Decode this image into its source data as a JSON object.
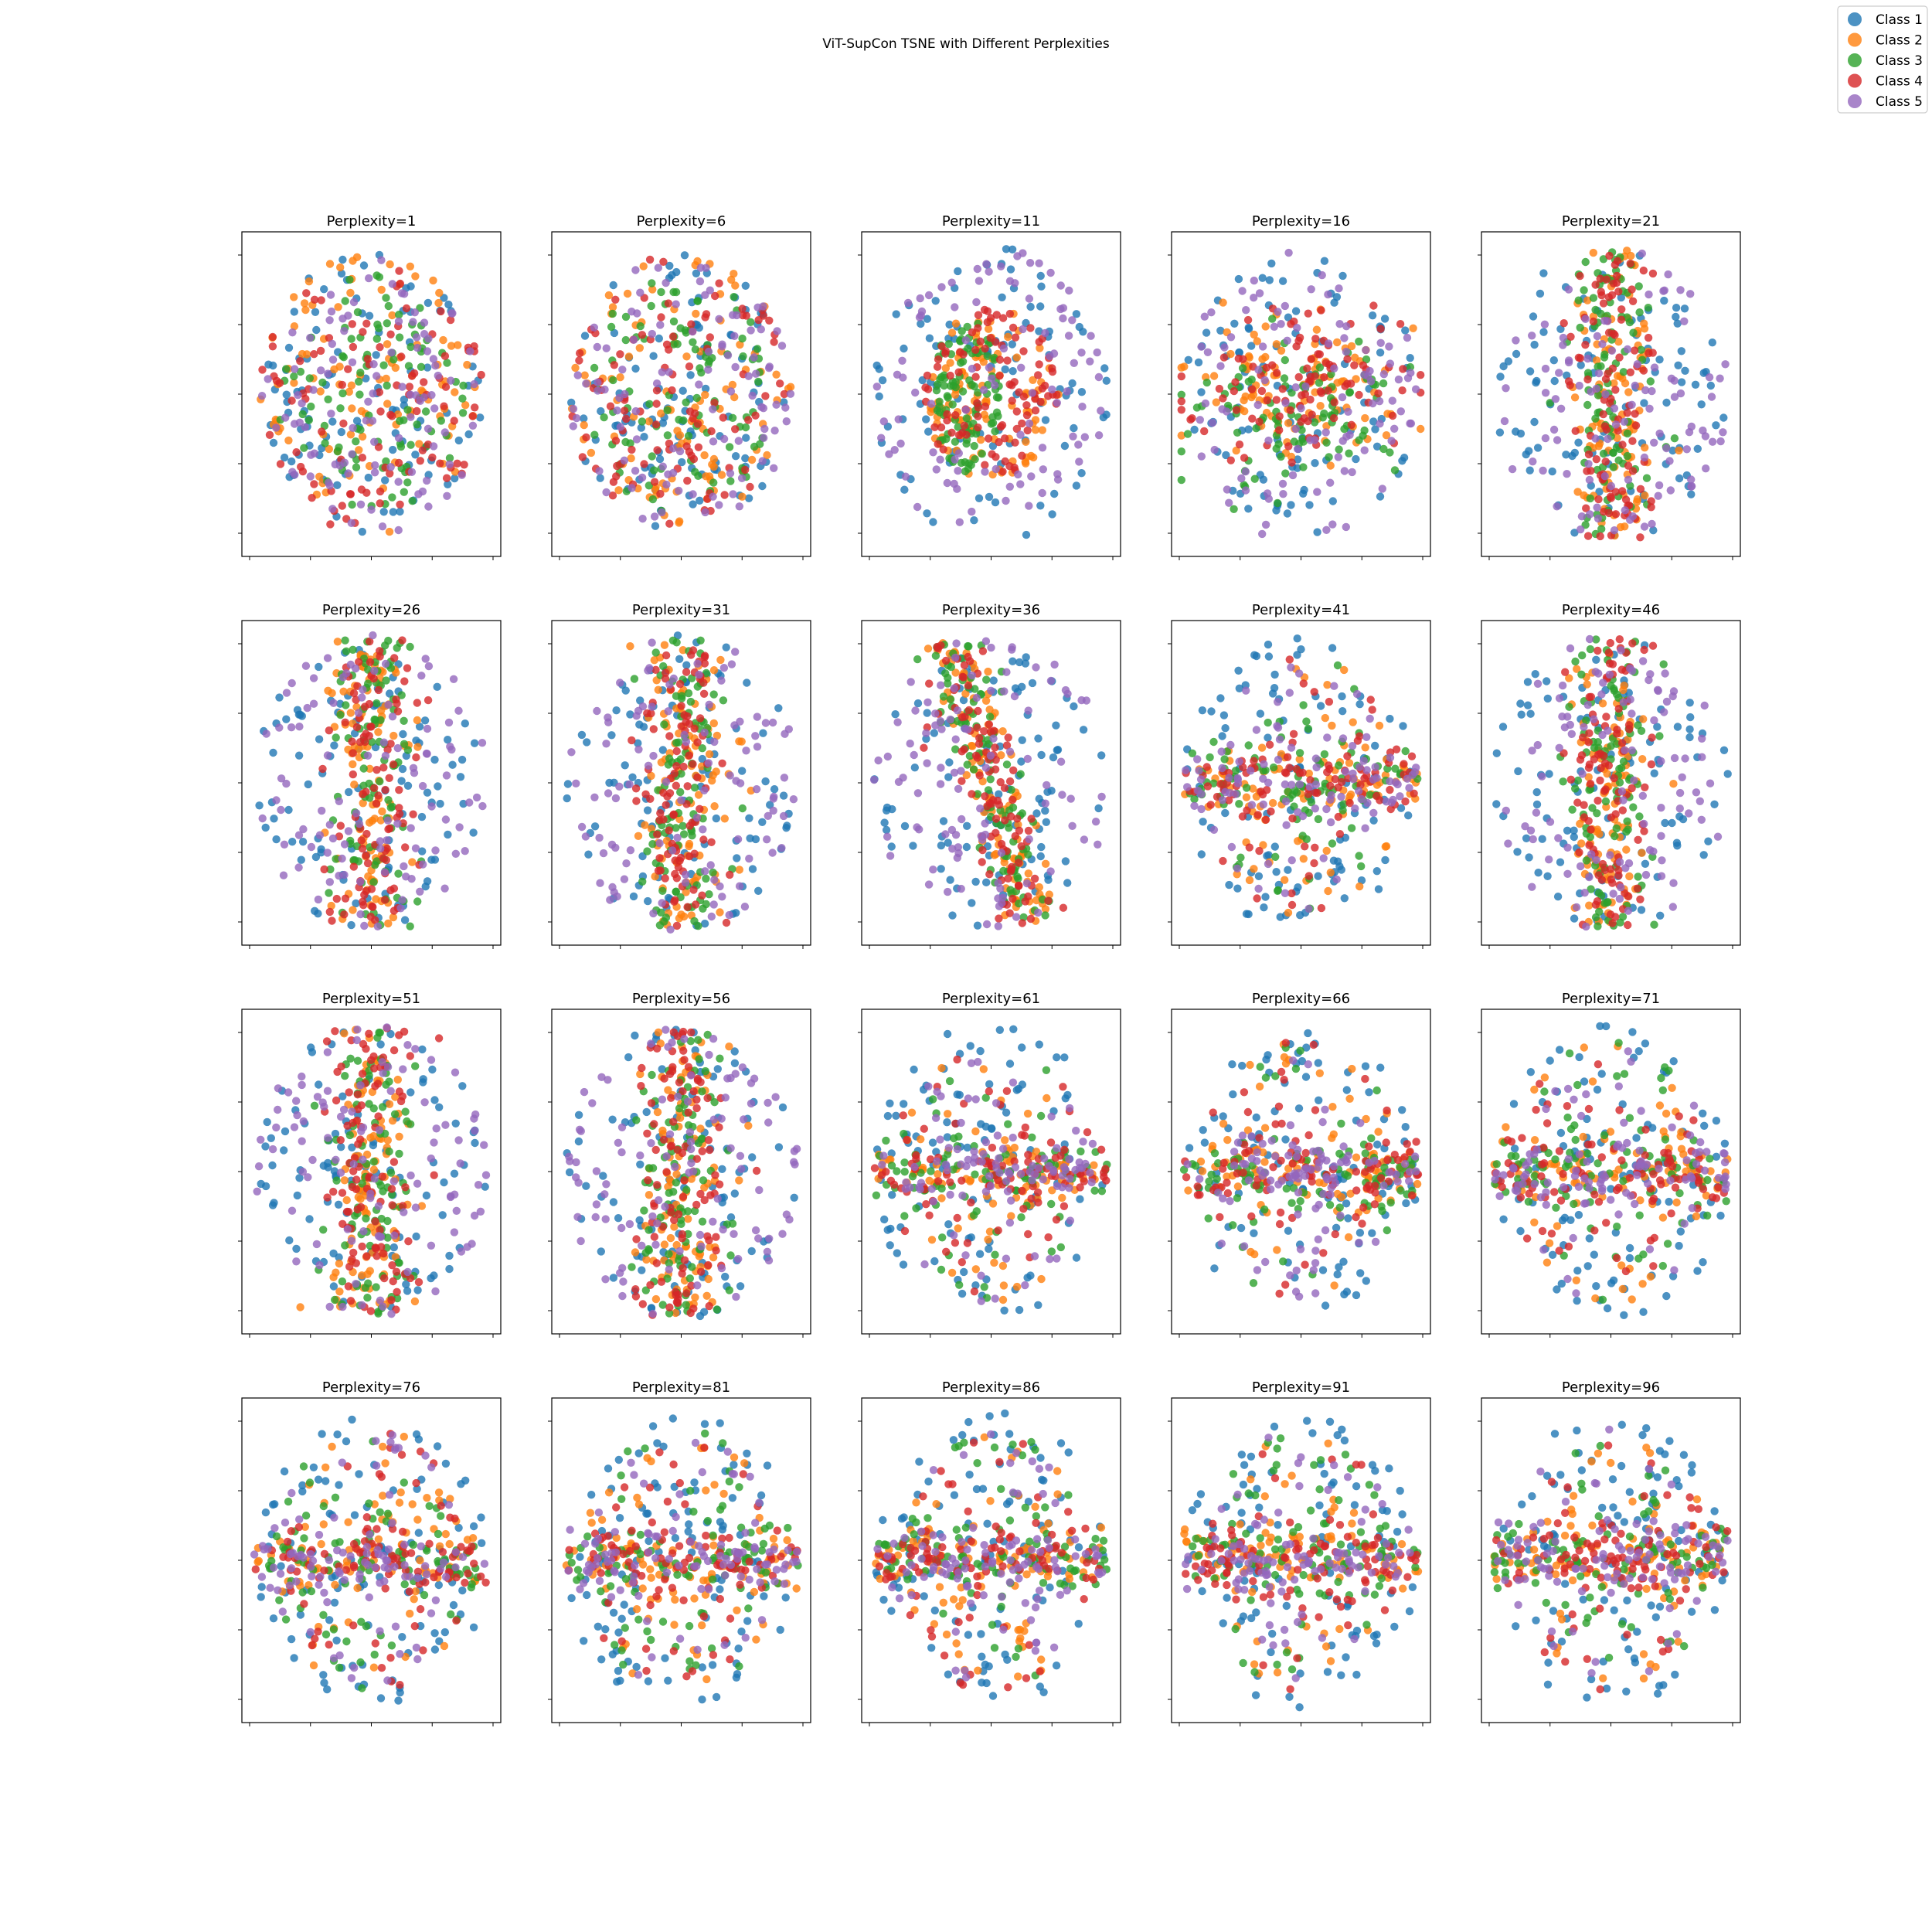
{
  "chart_data": {
    "type": "scatter",
    "title": "ViT-SupCon TSNE with Different Perplexities",
    "layout": "4x5 grid of subplots, shared legend top-right, tick labels hidden",
    "legend": {
      "placement": "top-right",
      "entries": [
        {
          "name": "Class 1",
          "color": "#1f77b4"
        },
        {
          "name": "Class 2",
          "color": "#ff7f0e"
        },
        {
          "name": "Class 3",
          "color": "#2ca02c"
        },
        {
          "name": "Class 4",
          "color": "#d62728"
        },
        {
          "name": "Class 5",
          "color": "#9467bd"
        }
      ]
    },
    "marker_alpha": 0.8,
    "points_per_class": 100,
    "panels": [
      {
        "title": "Perplexity=1",
        "perplexity": 1,
        "pattern": "blob"
      },
      {
        "title": "Perplexity=6",
        "perplexity": 6,
        "pattern": "blob"
      },
      {
        "title": "Perplexity=11",
        "perplexity": 11,
        "pattern": "blob-core"
      },
      {
        "title": "Perplexity=16",
        "perplexity": 16,
        "pattern": "ring-band"
      },
      {
        "title": "Perplexity=21",
        "perplexity": 21,
        "pattern": "vertical"
      },
      {
        "title": "Perplexity=26",
        "perplexity": 26,
        "pattern": "vertical"
      },
      {
        "title": "Perplexity=31",
        "perplexity": 31,
        "pattern": "vertical"
      },
      {
        "title": "Perplexity=36",
        "perplexity": 36,
        "pattern": "diagonal"
      },
      {
        "title": "Perplexity=41",
        "perplexity": 41,
        "pattern": "horizontal"
      },
      {
        "title": "Perplexity=46",
        "perplexity": 46,
        "pattern": "vertical"
      },
      {
        "title": "Perplexity=51",
        "perplexity": 51,
        "pattern": "vertical"
      },
      {
        "title": "Perplexity=56",
        "perplexity": 56,
        "pattern": "vertical"
      },
      {
        "title": "Perplexity=61",
        "perplexity": 61,
        "pattern": "horizontal"
      },
      {
        "title": "Perplexity=66",
        "perplexity": 66,
        "pattern": "horizontal"
      },
      {
        "title": "Perplexity=71",
        "perplexity": 71,
        "pattern": "horizontal"
      },
      {
        "title": "Perplexity=76",
        "perplexity": 76,
        "pattern": "horizontal"
      },
      {
        "title": "Perplexity=81",
        "perplexity": 81,
        "pattern": "horizontal"
      },
      {
        "title": "Perplexity=86",
        "perplexity": 86,
        "pattern": "horizontal"
      },
      {
        "title": "Perplexity=91",
        "perplexity": 91,
        "pattern": "horizontal"
      },
      {
        "title": "Perplexity=96",
        "perplexity": 96,
        "pattern": "horizontal"
      }
    ]
  }
}
